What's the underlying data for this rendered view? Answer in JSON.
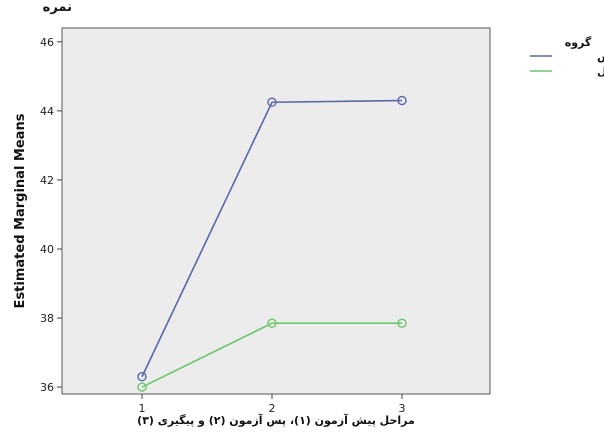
{
  "chart_data": {
    "type": "line",
    "title": "نمره",
    "xlabel": "مراحل پیش آزمون (۱)، پس آزمون (۲) و پیگیری (۳)",
    "ylabel": "Estimated Marginal Means",
    "categories": [
      "1",
      "2",
      "3"
    ],
    "ylim": [
      35.8,
      46.4
    ],
    "yticks": [
      36,
      38,
      40,
      42,
      44,
      46
    ],
    "grid": false,
    "legend_title": "گروه",
    "legend_position": "top-right",
    "series": [
      {
        "name": "آزمایش",
        "color": "#5b67a8",
        "values": [
          36.3,
          44.25,
          44.3
        ]
      },
      {
        "name": "کنترل",
        "color": "#6cc86c",
        "values": [
          36.0,
          37.85,
          37.85
        ]
      }
    ],
    "plot_background": "#ececec"
  }
}
